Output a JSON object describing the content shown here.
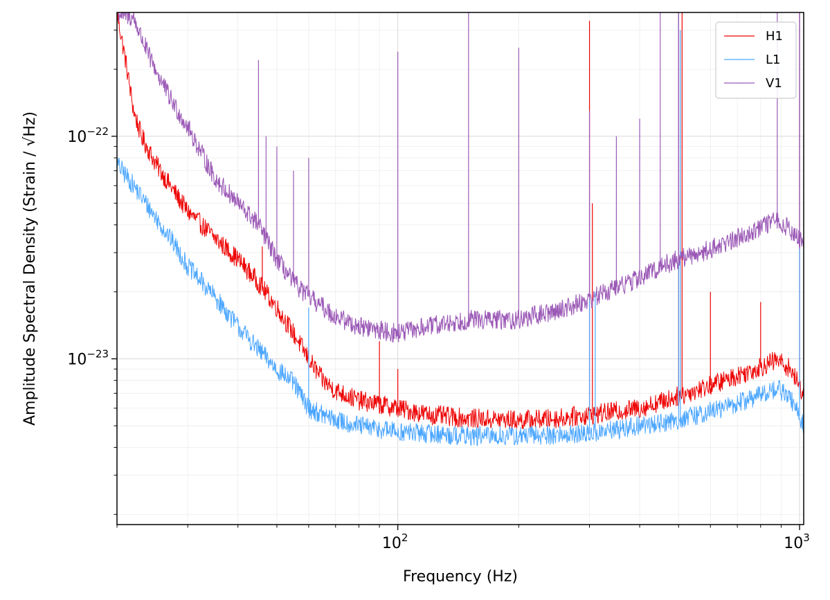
{
  "chart_data": {
    "type": "line",
    "title": "",
    "xlabel": "Frequency (Hz)",
    "ylabel": "Amplitude Spectral Density (Strain / √Hz)",
    "xscale": "log",
    "yscale": "log",
    "xlim": [
      20,
      1024
    ],
    "ylim": [
      1.8e-24,
      3.6e-22
    ],
    "x_ticks": [
      {
        "value": 100,
        "base": "10",
        "exp": "2"
      },
      {
        "value": 1000,
        "base": "10",
        "exp": "3"
      }
    ],
    "y_ticks": [
      {
        "value": 1e-23,
        "base": "10",
        "exp": "−23"
      },
      {
        "value": 1e-22,
        "base": "10",
        "exp": "−22"
      }
    ],
    "grid": true,
    "legend": {
      "position": "top-right"
    },
    "series": [
      {
        "name": "H1",
        "color": "#ee0000",
        "baseline": [
          [
            20,
            3.6e-22
          ],
          [
            21,
            2.2e-22
          ],
          [
            22,
            1.3e-22
          ],
          [
            23,
            1e-22
          ],
          [
            25,
            7.5e-23
          ],
          [
            28,
            5.5e-23
          ],
          [
            30,
            4.6e-23
          ],
          [
            35,
            3.5e-23
          ],
          [
            40,
            2.8e-23
          ],
          [
            45,
            2.2e-23
          ],
          [
            50,
            1.7e-23
          ],
          [
            55,
            1.3e-23
          ],
          [
            60,
            1e-23
          ],
          [
            65,
            8e-24
          ],
          [
            70,
            7.2e-24
          ],
          [
            80,
            6.5e-24
          ],
          [
            100,
            6e-24
          ],
          [
            120,
            5.6e-24
          ],
          [
            150,
            5.4e-24
          ],
          [
            200,
            5.3e-24
          ],
          [
            250,
            5.4e-24
          ],
          [
            300,
            5.6e-24
          ],
          [
            400,
            6e-24
          ],
          [
            500,
            6.8e-24
          ],
          [
            600,
            7.6e-24
          ],
          [
            700,
            8.4e-24
          ],
          [
            800,
            9.2e-24
          ],
          [
            880,
            9.9e-24
          ],
          [
            950,
            9e-24
          ],
          [
            1000,
            7.5e-24
          ],
          [
            1024,
            7e-24
          ]
        ],
        "peaks": [
          [
            36,
            3.3e-23
          ],
          [
            42,
            2.5e-23
          ],
          [
            46,
            3.2e-23
          ],
          [
            90,
            1.2e-23
          ],
          [
            100,
            9e-24
          ],
          [
            300,
            3.3e-22
          ],
          [
            305,
            5e-23
          ],
          [
            500,
            3.6e-22
          ],
          [
            510,
            3.6e-22
          ],
          [
            600,
            2e-23
          ],
          [
            800,
            1.8e-23
          ],
          [
            1000,
            3.6e-22
          ]
        ]
      },
      {
        "name": "L1",
        "color": "#4ba6ff",
        "baseline": [
          [
            20,
            7.5e-23
          ],
          [
            22,
            6e-23
          ],
          [
            25,
            4.3e-23
          ],
          [
            28,
            3.2e-23
          ],
          [
            30,
            2.6e-23
          ],
          [
            35,
            1.9e-23
          ],
          [
            40,
            1.4e-23
          ],
          [
            45,
            1.1e-23
          ],
          [
            50,
            9e-24
          ],
          [
            55,
            7.8e-24
          ],
          [
            60,
            6e-24
          ],
          [
            65,
            5.6e-24
          ],
          [
            70,
            5.3e-24
          ],
          [
            80,
            5e-24
          ],
          [
            100,
            4.7e-24
          ],
          [
            150,
            4.5e-24
          ],
          [
            200,
            4.5e-24
          ],
          [
            300,
            4.6e-24
          ],
          [
            400,
            5e-24
          ],
          [
            500,
            5.3e-24
          ],
          [
            600,
            5.8e-24
          ],
          [
            700,
            6.3e-24
          ],
          [
            800,
            6.9e-24
          ],
          [
            880,
            7.4e-24
          ],
          [
            950,
            6.6e-24
          ],
          [
            1000,
            5.5e-24
          ],
          [
            1024,
            5e-24
          ]
        ],
        "peaks": [
          [
            60,
            1.7e-23
          ],
          [
            300,
            5e-23
          ],
          [
            310,
            2e-23
          ],
          [
            500,
            3.6e-22
          ],
          [
            505,
            3e-22
          ],
          [
            1000,
            3.6e-22
          ]
        ]
      },
      {
        "name": "V1",
        "color": "#9b59b6",
        "baseline": [
          [
            20,
            3.6e-22
          ],
          [
            22,
            3.4e-22
          ],
          [
            24,
            2.3e-22
          ],
          [
            27,
            1.5e-22
          ],
          [
            30,
            1.1e-22
          ],
          [
            35,
            6.5e-23
          ],
          [
            40,
            5e-23
          ],
          [
            45,
            4e-23
          ],
          [
            50,
            2.8e-23
          ],
          [
            55,
            2.2e-23
          ],
          [
            60,
            1.9e-23
          ],
          [
            70,
            1.55e-23
          ],
          [
            80,
            1.4e-23
          ],
          [
            100,
            1.3e-23
          ],
          [
            120,
            1.4e-23
          ],
          [
            150,
            1.5e-23
          ],
          [
            200,
            1.5e-23
          ],
          [
            250,
            1.65e-23
          ],
          [
            300,
            1.85e-23
          ],
          [
            350,
            2.1e-23
          ],
          [
            400,
            2.3e-23
          ],
          [
            450,
            2.6e-23
          ],
          [
            500,
            2.8e-23
          ],
          [
            600,
            3.1e-23
          ],
          [
            700,
            3.5e-23
          ],
          [
            800,
            3.9e-23
          ],
          [
            880,
            4.2e-23
          ],
          [
            950,
            3.8e-23
          ],
          [
            1000,
            3.4e-23
          ],
          [
            1024,
            3.2e-23
          ]
        ],
        "peaks": [
          [
            45,
            2.2e-22
          ],
          [
            47,
            1e-22
          ],
          [
            50,
            9e-23
          ],
          [
            55,
            7e-23
          ],
          [
            60,
            8e-23
          ],
          [
            100,
            2.4e-22
          ],
          [
            150,
            3.6e-22
          ],
          [
            200,
            2.5e-22
          ],
          [
            300,
            1.3e-22
          ],
          [
            350,
            1e-22
          ],
          [
            400,
            1.2e-22
          ],
          [
            450,
            3.6e-22
          ],
          [
            500,
            3.6e-22
          ],
          [
            880,
            3.6e-22
          ],
          [
            1000,
            3.6e-22
          ]
        ]
      }
    ]
  }
}
